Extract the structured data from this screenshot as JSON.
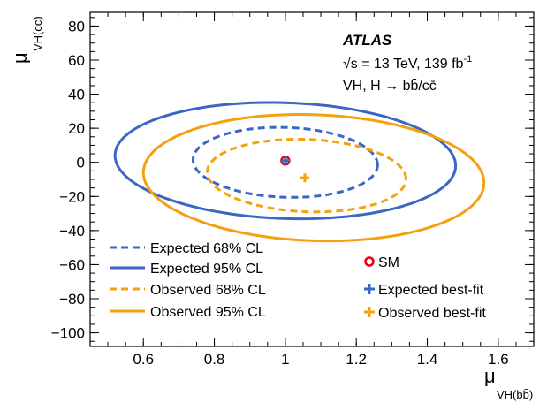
{
  "chart_data": {
    "type": "contour",
    "title": "",
    "xlabel": {
      "main": "μ",
      "sub": "VH(bb̄)"
    },
    "ylabel": {
      "main": "μ",
      "sub": "VH(cc̄)"
    },
    "xlim": [
      0.45,
      1.7
    ],
    "ylim": [
      -108,
      88
    ],
    "xticks": [
      0.6,
      0.8,
      1,
      1.2,
      1.4,
      1.6
    ],
    "xtick_labels": [
      "0.6",
      "0.8",
      "1",
      "1.2",
      "1.4",
      "1.6"
    ],
    "yticks": [
      -100,
      -80,
      -60,
      -40,
      -20,
      0,
      20,
      40,
      60,
      80
    ],
    "ytick_labels": [
      "−100",
      "−80",
      "−60",
      "−40",
      "−20",
      "0",
      "20",
      "40",
      "60",
      "80"
    ],
    "annotations": {
      "experiment": "ATLAS",
      "energy": "√s = 13 TeV, 139 fb",
      "energy_sup": "-1",
      "process": "VH, H → bb̄/cc̄"
    },
    "colors": {
      "expected": "#3a67c3",
      "observed": "#f5a00f",
      "sm": "#e4000f"
    },
    "contours": [
      {
        "name": "Expected 68% CL",
        "style": "dashed",
        "color": "#3a67c3",
        "center": [
          1.0,
          0.0
        ],
        "x_range": [
          0.74,
          1.26
        ],
        "y_range": [
          -20.5,
          20.5
        ],
        "tilt": -1.5
      },
      {
        "name": "Expected 95% CL",
        "style": "solid",
        "color": "#3a67c3",
        "center": [
          1.0,
          0.5
        ],
        "x_range": [
          0.52,
          1.48
        ],
        "y_range": [
          -33,
          35
        ],
        "tilt": -3
      },
      {
        "name": "Observed 68% CL",
        "style": "dashed",
        "color": "#f5a00f",
        "center": [
          1.06,
          -9.5
        ],
        "x_range": [
          0.78,
          1.34
        ],
        "y_range": [
          -29,
          13.5
        ],
        "tilt": -2
      },
      {
        "name": "Observed 95% CL",
        "style": "solid",
        "color": "#f5a00f",
        "center": [
          1.08,
          -7.5
        ],
        "x_range": [
          0.6,
          1.56
        ],
        "y_range": [
          -46,
          28
        ],
        "tilt": -3
      }
    ],
    "points": [
      {
        "name": "SM",
        "x": 1.0,
        "y": 1.0,
        "marker": "open-circle",
        "color": "#e4000f"
      },
      {
        "name": "Expected best-fit",
        "x": 1.0,
        "y": 1.0,
        "marker": "plus",
        "color": "#3a67c3"
      },
      {
        "name": "Observed best-fit",
        "x": 1.055,
        "y": -9,
        "marker": "plus",
        "color": "#f5a00f"
      }
    ],
    "legend_left": [
      "Expected 68% CL",
      "Expected 95% CL",
      "Observed 68% CL",
      "Observed 95% CL"
    ],
    "legend_right": [
      "SM",
      "Expected best-fit",
      "Observed best-fit"
    ],
    "legend_placement": "bottom"
  }
}
